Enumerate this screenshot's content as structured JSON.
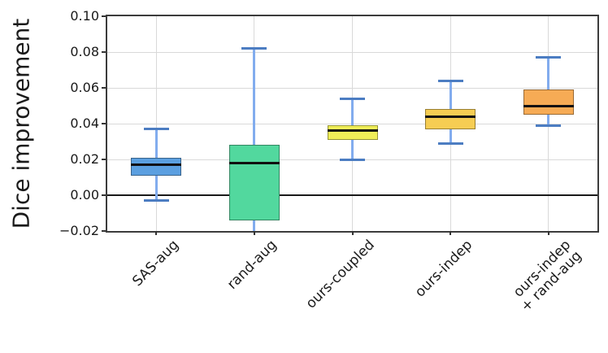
{
  "chart_data": {
    "type": "box",
    "title": "",
    "xlabel": "",
    "ylabel": "Dice improvement",
    "ylim": [
      -0.02,
      0.1
    ],
    "yticks": [
      0.1,
      0.08,
      0.06,
      0.04,
      0.02,
      0.0,
      -0.02
    ],
    "ytick_labels": [
      "0.10",
      "0.08",
      "0.06",
      "0.04",
      "0.02",
      "0.00",
      "−0.02"
    ],
    "grid": true,
    "zero_line": 0.0,
    "legend": "none",
    "categories": [
      "SAS-aug",
      "rand-aug",
      "ours-coupled",
      "ours-indep",
      "ours-indep\n+ rand-aug"
    ],
    "boxes": [
      {
        "label": "SAS-aug",
        "fill": "#5B9FE0",
        "whisker_low": -0.003,
        "q1": 0.011,
        "median": 0.017,
        "q3": 0.021,
        "whisker_high": 0.037,
        "whisker_low_clipped": false
      },
      {
        "label": "rand-aug",
        "fill": "#52D89E",
        "whisker_low": -0.02,
        "q1": -0.014,
        "median": 0.018,
        "q3": 0.028,
        "whisker_high": 0.082,
        "whisker_low_clipped": true
      },
      {
        "label": "ours-coupled",
        "fill": "#F0EE58",
        "whisker_low": 0.02,
        "q1": 0.031,
        "median": 0.036,
        "q3": 0.039,
        "whisker_high": 0.054,
        "whisker_low_clipped": false
      },
      {
        "label": "ours-indep",
        "fill": "#F6CD53",
        "whisker_low": 0.029,
        "q1": 0.037,
        "median": 0.044,
        "q3": 0.048,
        "whisker_high": 0.064,
        "whisker_low_clipped": false
      },
      {
        "label": "ours-indep\n+ rand-aug",
        "fill": "#F6AB55",
        "whisker_low": 0.039,
        "q1": 0.045,
        "median": 0.05,
        "q3": 0.059,
        "whisker_high": 0.077,
        "whisker_low_clipped": false
      }
    ],
    "colors": {
      "whisker": "#82ACEE",
      "whisker_cap": "#4C7DC2",
      "median": "#111111",
      "grid": "#d9d9d9",
      "spine": "#3c3c3c",
      "zero_line": "#1a1a1a",
      "text": "#1a1a1a"
    }
  }
}
